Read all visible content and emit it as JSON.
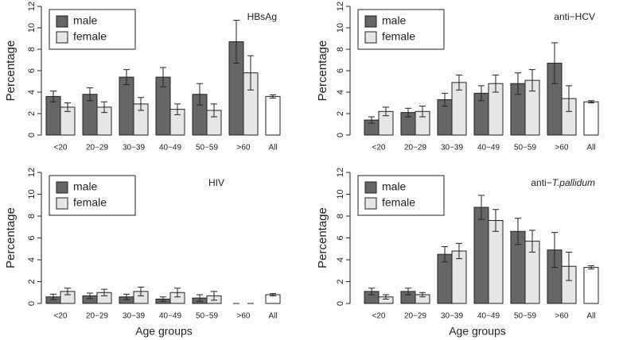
{
  "chart_data": [
    {
      "type": "bar",
      "title": "HBsAg",
      "y_label": "Percentage",
      "categories": [
        "<20",
        "20−29",
        "30−39",
        "40−49",
        "50−59",
        ">60"
      ],
      "series": [
        {
          "name": "male",
          "color": "#666666",
          "values": [
            3.6,
            3.8,
            5.4,
            5.4,
            3.8,
            8.7
          ],
          "errors": [
            0.5,
            0.6,
            0.7,
            0.9,
            1.0,
            2.0
          ]
        },
        {
          "name": "female",
          "color": "#e6e6e6",
          "values": [
            2.6,
            2.6,
            2.9,
            2.4,
            2.3,
            5.8
          ],
          "errors": [
            0.4,
            0.5,
            0.6,
            0.5,
            0.6,
            1.6
          ]
        }
      ],
      "overall": {
        "label": "All",
        "value": 3.6,
        "error": 0.15,
        "color": "#ffffff"
      },
      "ylim": [
        0,
        12
      ],
      "yticks": [
        0,
        2,
        4,
        6,
        8,
        10,
        12
      ],
      "legend": "top-left"
    },
    {
      "type": "bar",
      "title": "anti−HCV",
      "y_label": "Percentage",
      "categories": [
        "<20",
        "20−29",
        "30−39",
        "40−49",
        "50−59",
        ">60"
      ],
      "series": [
        {
          "name": "male",
          "color": "#666666",
          "values": [
            1.4,
            2.1,
            3.3,
            3.9,
            4.8,
            6.7
          ],
          "errors": [
            0.3,
            0.4,
            0.6,
            0.7,
            1.0,
            1.9
          ]
        },
        {
          "name": "female",
          "color": "#e6e6e6",
          "values": [
            2.2,
            2.2,
            4.9,
            4.8,
            5.1,
            3.4
          ],
          "errors": [
            0.4,
            0.5,
            0.7,
            0.8,
            1.0,
            1.2
          ]
        }
      ],
      "overall": {
        "label": "All",
        "value": 3.1,
        "error": 0.1,
        "color": "#ffffff"
      },
      "ylim": [
        0,
        12
      ],
      "yticks": [
        0,
        2,
        4,
        6,
        8,
        10,
        12
      ],
      "legend": "top-left"
    },
    {
      "type": "bar",
      "title": "HIV",
      "y_label": "Percentage",
      "x_label": "Age groups",
      "categories": [
        "<20",
        "20−29",
        "30−39",
        "40−49",
        "50−59",
        ">60"
      ],
      "series": [
        {
          "name": "male",
          "color": "#666666",
          "values": [
            0.6,
            0.7,
            0.6,
            0.4,
            0.5,
            0
          ],
          "errors": [
            0.25,
            0.25,
            0.25,
            0.2,
            0.3,
            0
          ]
        },
        {
          "name": "female",
          "color": "#e6e6e6",
          "values": [
            1.1,
            1.0,
            1.1,
            1.0,
            0.7,
            0
          ],
          "errors": [
            0.3,
            0.3,
            0.4,
            0.4,
            0.4,
            0
          ]
        }
      ],
      "overall": {
        "label": "All",
        "value": 0.8,
        "error": 0.1,
        "color": "#ffffff"
      },
      "ylim": [
        0,
        12
      ],
      "yticks": [
        0,
        2,
        4,
        6,
        8,
        10,
        12
      ],
      "legend": "top-left"
    },
    {
      "type": "bar",
      "title": "anti−",
      "title_italic": "T.pallidum",
      "y_label": "Percentage",
      "x_label": "Age groups",
      "categories": [
        "<20",
        "20−29",
        "30−39",
        "40−49",
        "50−59",
        ">60"
      ],
      "series": [
        {
          "name": "male",
          "color": "#666666",
          "values": [
            1.1,
            1.1,
            4.5,
            8.8,
            6.6,
            4.9
          ],
          "errors": [
            0.3,
            0.3,
            0.7,
            1.1,
            1.2,
            1.6
          ]
        },
        {
          "name": "female",
          "color": "#e6e6e6",
          "values": [
            0.6,
            0.8,
            4.8,
            7.6,
            5.7,
            3.4
          ],
          "errors": [
            0.2,
            0.2,
            0.7,
            1.0,
            1.0,
            1.3
          ]
        }
      ],
      "overall": {
        "label": "All",
        "value": 3.3,
        "error": 0.15,
        "color": "#ffffff"
      },
      "ylim": [
        0,
        12
      ],
      "yticks": [
        0,
        2,
        4,
        6,
        8,
        10,
        12
      ],
      "legend": "top-left"
    }
  ]
}
